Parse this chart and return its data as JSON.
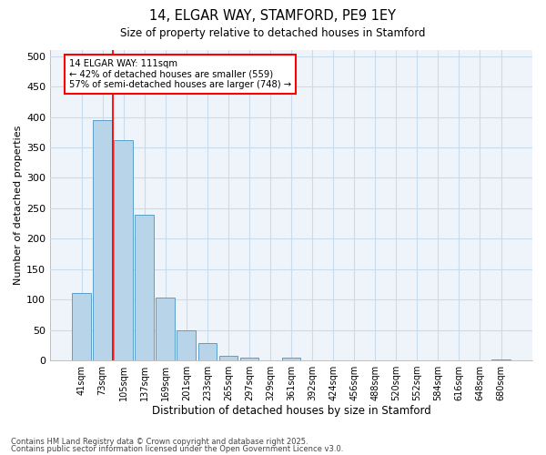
{
  "title1": "14, ELGAR WAY, STAMFORD, PE9 1EY",
  "title2": "Size of property relative to detached houses in Stamford",
  "xlabel": "Distribution of detached houses by size in Stamford",
  "ylabel": "Number of detached properties",
  "categories": [
    "41sqm",
    "73sqm",
    "105sqm",
    "137sqm",
    "169sqm",
    "201sqm",
    "233sqm",
    "265sqm",
    "297sqm",
    "329sqm",
    "361sqm",
    "392sqm",
    "424sqm",
    "456sqm",
    "488sqm",
    "520sqm",
    "552sqm",
    "584sqm",
    "616sqm",
    "648sqm",
    "680sqm"
  ],
  "values": [
    110,
    395,
    362,
    240,
    103,
    50,
    29,
    8,
    5,
    0,
    5,
    0,
    0,
    0,
    0,
    0,
    0,
    0,
    0,
    0,
    2
  ],
  "bar_color": "#b8d4e8",
  "bar_edge_color": "#5b9ec9",
  "red_line_x": 1.5,
  "annotation_line1": "14 ELGAR WAY: 111sqm",
  "annotation_line2": "← 42% of detached houses are smaller (559)",
  "annotation_line3": "57% of semi-detached houses are larger (748) →",
  "annotation_box_color": "white",
  "annotation_box_edge": "red",
  "footer1": "Contains HM Land Registry data © Crown copyright and database right 2025.",
  "footer2": "Contains public sector information licensed under the Open Government Licence v3.0.",
  "ylim": [
    0,
    510
  ],
  "yticks": [
    0,
    50,
    100,
    150,
    200,
    250,
    300,
    350,
    400,
    450,
    500
  ],
  "grid_color": "#c8dced",
  "bg_color": "#ffffff",
  "plot_bg_color": "#eef4f9"
}
